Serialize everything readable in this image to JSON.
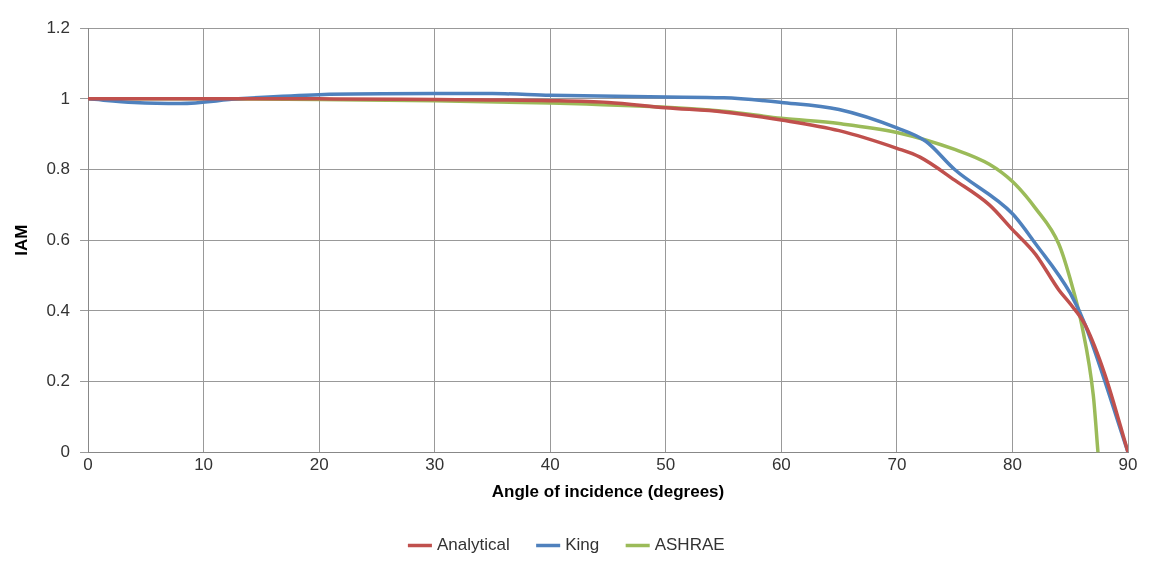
{
  "chart_data": {
    "type": "line",
    "xlabel": "Angle of incidence (degrees)",
    "ylabel": "IAM",
    "xlim": [
      0,
      90
    ],
    "xticks": [
      0,
      10,
      20,
      30,
      40,
      50,
      60,
      70,
      80,
      90
    ],
    "ylim": [
      0,
      1.2
    ],
    "yticks": [
      0,
      0.2,
      0.4,
      0.6,
      0.8,
      1,
      1.2
    ],
    "grid": true,
    "legend": "bottom",
    "marker": "none",
    "line_style": "solid",
    "series": [
      {
        "name": "Analytical",
        "color": "#c0504d",
        "x": [
          0,
          10,
          20,
          30,
          40,
          45,
          50,
          55,
          60,
          65,
          70,
          72,
          75,
          78,
          80,
          82,
          84,
          85,
          86.3,
          88,
          90
        ],
        "values": [
          1,
          1,
          1,
          0.998,
          0.995,
          0.99,
          0.975,
          0.963,
          0.94,
          0.91,
          0.86,
          0.835,
          0.77,
          0.7,
          0.63,
          0.56,
          0.46,
          0.42,
          0.36,
          0.22,
          0
        ]
      },
      {
        "name": "King",
        "color": "#4f81bd",
        "x": [
          0,
          4,
          8,
          13,
          20,
          30,
          35,
          40,
          50,
          55,
          60,
          65,
          70,
          72.5,
          75,
          80,
          82,
          85,
          86.3,
          90
        ],
        "values": [
          1,
          0.99,
          0.987,
          1,
          1.012,
          1.015,
          1.015,
          1.01,
          1.005,
          1.003,
          0.99,
          0.97,
          0.918,
          0.88,
          0.8,
          0.675,
          0.59,
          0.45,
          0.36,
          0
        ]
      },
      {
        "name": "ASHRAE",
        "color": "#9bbb59",
        "x": [
          0,
          10,
          20,
          30,
          40,
          50,
          55,
          60,
          65,
          70,
          75,
          78,
          80,
          82,
          84,
          85,
          86,
          87,
          87.4
        ],
        "values": [
          1,
          1,
          0.998,
          0.995,
          0.988,
          0.976,
          0.965,
          0.945,
          0.93,
          0.905,
          0.857,
          0.815,
          0.766,
          0.69,
          0.59,
          0.49,
          0.36,
          0.16,
          0
        ]
      }
    ]
  }
}
